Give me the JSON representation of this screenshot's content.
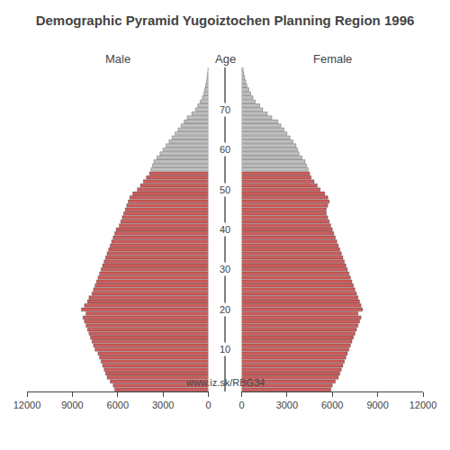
{
  "chart_data": {
    "type": "bar",
    "orientation": "horizontal",
    "title": "Demographic Pyramid Yugoiztochen Planning Region 1996",
    "ylabel": "Age",
    "annotations": [
      "www.iz.sk/RBG34"
    ],
    "grid": false,
    "xlim": [
      0,
      12000
    ],
    "xticks": [
      0,
      3000,
      6000,
      9000,
      12000
    ],
    "ylim": [
      -0.5,
      80.5
    ],
    "yticks": [
      10,
      20,
      30,
      40,
      50,
      60,
      70
    ],
    "categories": [
      0,
      1,
      2,
      3,
      4,
      5,
      6,
      7,
      8,
      9,
      10,
      11,
      12,
      13,
      14,
      15,
      16,
      17,
      18,
      19,
      20,
      21,
      22,
      23,
      24,
      25,
      26,
      27,
      28,
      29,
      30,
      31,
      32,
      33,
      34,
      35,
      36,
      37,
      38,
      39,
      40,
      41,
      42,
      43,
      44,
      45,
      46,
      47,
      48,
      49,
      50,
      51,
      52,
      53,
      54,
      55,
      56,
      57,
      58,
      59,
      60,
      61,
      62,
      63,
      64,
      65,
      66,
      67,
      68,
      69,
      70,
      71,
      72,
      73,
      74,
      75,
      76,
      77,
      78,
      79,
      80
    ],
    "series": [
      {
        "name": "Male",
        "values": [
          6200,
          6300,
          6500,
          6700,
          6800,
          6900,
          7000,
          7100,
          7200,
          7300,
          7500,
          7600,
          7700,
          7800,
          7900,
          8000,
          8100,
          8200,
          8300,
          8100,
          8400,
          8200,
          8000,
          7900,
          7700,
          7600,
          7500,
          7400,
          7300,
          7200,
          7100,
          7000,
          6900,
          6800,
          6700,
          6600,
          6500,
          6400,
          6300,
          6200,
          6100,
          5900,
          5800,
          5700,
          5600,
          5500,
          5400,
          5300,
          5200,
          5000,
          4700,
          4500,
          4300,
          4100,
          3900,
          3800,
          3700,
          3600,
          3400,
          3200,
          3000,
          2800,
          2600,
          2400,
          2200,
          2000,
          1800,
          1600,
          1400,
          1100,
          850,
          700,
          550,
          400,
          300,
          250,
          180,
          130,
          90,
          60,
          30
        ],
        "colors": [
          "#cd5c5c",
          "#cd5c5c",
          "#cd5c5c",
          "#cd5c5c",
          "#cd5c5c",
          "#cd5c5c",
          "#cd5c5c",
          "#cd5c5c",
          "#cd5c5c",
          "#cd5c5c",
          "#cd5c5c",
          "#cd5c5c",
          "#cd5c5c",
          "#cd5c5c",
          "#cd5c5c",
          "#cd5c5c",
          "#cd5c5c",
          "#cd5c5c",
          "#cd5c5c",
          "#cd5c5c",
          "#cd5c5c",
          "#cd5c5c",
          "#cd5c5c",
          "#cd5c5c",
          "#cd5c5c",
          "#cd5c5c",
          "#cd5c5c",
          "#cd5c5c",
          "#cd5c5c",
          "#cd5c5c",
          "#cd5c5c",
          "#cd5c5c",
          "#cd5c5c",
          "#cd5c5c",
          "#cd5c5c",
          "#cd5c5c",
          "#cd5c5c",
          "#cd5c5c",
          "#cd5c5c",
          "#cd5c5c",
          "#cd5c5c",
          "#cd5c5c",
          "#cd5c5c",
          "#cd5c5c",
          "#cd5c5c",
          "#cd5c5c",
          "#cd5c5c",
          "#cd5c5c",
          "#cd5c5c",
          "#cd5c5c",
          "#cd5c5c",
          "#cd5c5c",
          "#cd5c5c",
          "#cd5c5c",
          "#cd5c5c",
          "#c0c0c0",
          "#c0c0c0",
          "#c0c0c0",
          "#c0c0c0",
          "#c0c0c0",
          "#c0c0c0",
          "#c0c0c0",
          "#c0c0c0",
          "#c0c0c0",
          "#c0c0c0",
          "#c0c0c0",
          "#c0c0c0",
          "#c0c0c0",
          "#c0c0c0",
          "#c0c0c0",
          "#c0c0c0",
          "#c0c0c0",
          "#c0c0c0",
          "#c0c0c0",
          "#c0c0c0",
          "#c0c0c0",
          "#c0c0c0",
          "#c0c0c0",
          "#c0c0c0",
          "#c0c0c0",
          "#c0c0c0"
        ]
      },
      {
        "name": "Female",
        "values": [
          5900,
          6000,
          6200,
          6400,
          6500,
          6600,
          6700,
          6800,
          6900,
          7000,
          7100,
          7200,
          7300,
          7400,
          7500,
          7600,
          7700,
          7800,
          7900,
          7700,
          8000,
          7900,
          7800,
          7700,
          7600,
          7500,
          7400,
          7300,
          7200,
          7100,
          7000,
          6900,
          6800,
          6700,
          6600,
          6500,
          6400,
          6300,
          6200,
          6100,
          6000,
          5900,
          5800,
          5700,
          5600,
          5600,
          5700,
          5800,
          5700,
          5500,
          5200,
          5000,
          4800,
          4600,
          4500,
          4400,
          4300,
          4200,
          4000,
          3800,
          3700,
          3600,
          3400,
          3200,
          3000,
          2800,
          2600,
          2400,
          2000,
          1700,
          1400,
          1200,
          900,
          750,
          600,
          480,
          350,
          280,
          210,
          150,
          100
        ],
        "colors": [
          "#cd5c5c",
          "#cd5c5c",
          "#cd5c5c",
          "#cd5c5c",
          "#cd5c5c",
          "#cd5c5c",
          "#cd5c5c",
          "#cd5c5c",
          "#cd5c5c",
          "#cd5c5c",
          "#cd5c5c",
          "#cd5c5c",
          "#cd5c5c",
          "#cd5c5c",
          "#cd5c5c",
          "#cd5c5c",
          "#cd5c5c",
          "#cd5c5c",
          "#cd5c5c",
          "#cd5c5c",
          "#cd5c5c",
          "#cd5c5c",
          "#cd5c5c",
          "#cd5c5c",
          "#cd5c5c",
          "#cd5c5c",
          "#cd5c5c",
          "#cd5c5c",
          "#cd5c5c",
          "#cd5c5c",
          "#cd5c5c",
          "#cd5c5c",
          "#cd5c5c",
          "#cd5c5c",
          "#cd5c5c",
          "#cd5c5c",
          "#cd5c5c",
          "#cd5c5c",
          "#cd5c5c",
          "#cd5c5c",
          "#cd5c5c",
          "#cd5c5c",
          "#cd5c5c",
          "#cd5c5c",
          "#cd5c5c",
          "#cd5c5c",
          "#cd5c5c",
          "#cd5c5c",
          "#cd5c5c",
          "#cd5c5c",
          "#cd5c5c",
          "#cd5c5c",
          "#cd5c5c",
          "#cd5c5c",
          "#cd5c5c",
          "#c0c0c0",
          "#c0c0c0",
          "#c0c0c0",
          "#c0c0c0",
          "#c0c0c0",
          "#c0c0c0",
          "#c0c0c0",
          "#c0c0c0",
          "#c0c0c0",
          "#c0c0c0",
          "#c0c0c0",
          "#c0c0c0",
          "#c0c0c0",
          "#c0c0c0",
          "#c0c0c0",
          "#c0c0c0",
          "#c0c0c0",
          "#c0c0c0",
          "#c0c0c0",
          "#c0c0c0",
          "#c0c0c0",
          "#c0c0c0",
          "#c0c0c0",
          "#c0c0c0",
          "#c0c0c0",
          "#c0c0c0"
        ]
      }
    ]
  }
}
